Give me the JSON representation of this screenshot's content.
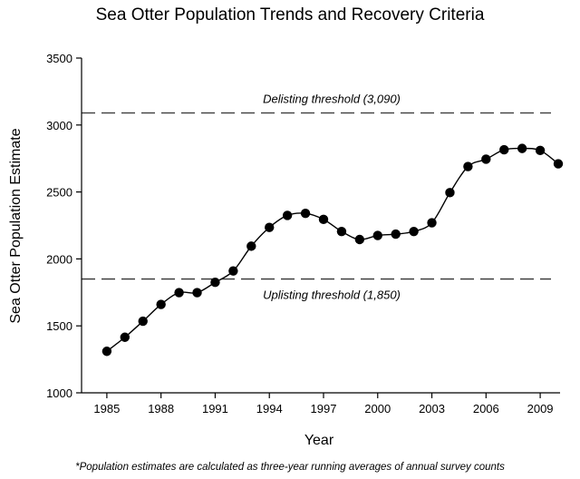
{
  "chart_data": {
    "type": "line",
    "title": "Sea Otter Population Trends and Recovery Criteria",
    "xlabel": "Year",
    "ylabel": "Sea Otter Population Estimate",
    "xlim": [
      1983.6,
      2010.1
    ],
    "ylim": [
      1000,
      3500
    ],
    "xticks": [
      1985,
      1988,
      1991,
      1994,
      1997,
      2000,
      2003,
      2006,
      2009
    ],
    "yticks": [
      1000,
      1500,
      2000,
      2500,
      3000,
      3500
    ],
    "grid": false,
    "series": [
      {
        "x": [
          1985,
          1986,
          1987,
          1988,
          1989,
          1990,
          1991,
          1992,
          1993,
          1994,
          1995,
          1996,
          1997,
          1998,
          1999,
          2000,
          2001,
          2002,
          2003,
          2004,
          2005,
          2006,
          2007,
          2008,
          2009,
          2010
        ],
        "values": [
          1310,
          1415,
          1535,
          1660,
          1748,
          1748,
          1825,
          1910,
          2095,
          2235,
          2325,
          2340,
          2295,
          2205,
          2145,
          2175,
          2185,
          2205,
          2270,
          2495,
          2690,
          2745,
          2815,
          2825,
          2810,
          2710
        ]
      }
    ],
    "reference_lines": [
      {
        "value": 3090,
        "label": "Delisting threshold (3,090)"
      },
      {
        "value": 1850,
        "label": "Uplisting threshold (1,850)"
      }
    ],
    "footnote": "*Population estimates are calculated as three-year running averages of annual survey counts"
  }
}
